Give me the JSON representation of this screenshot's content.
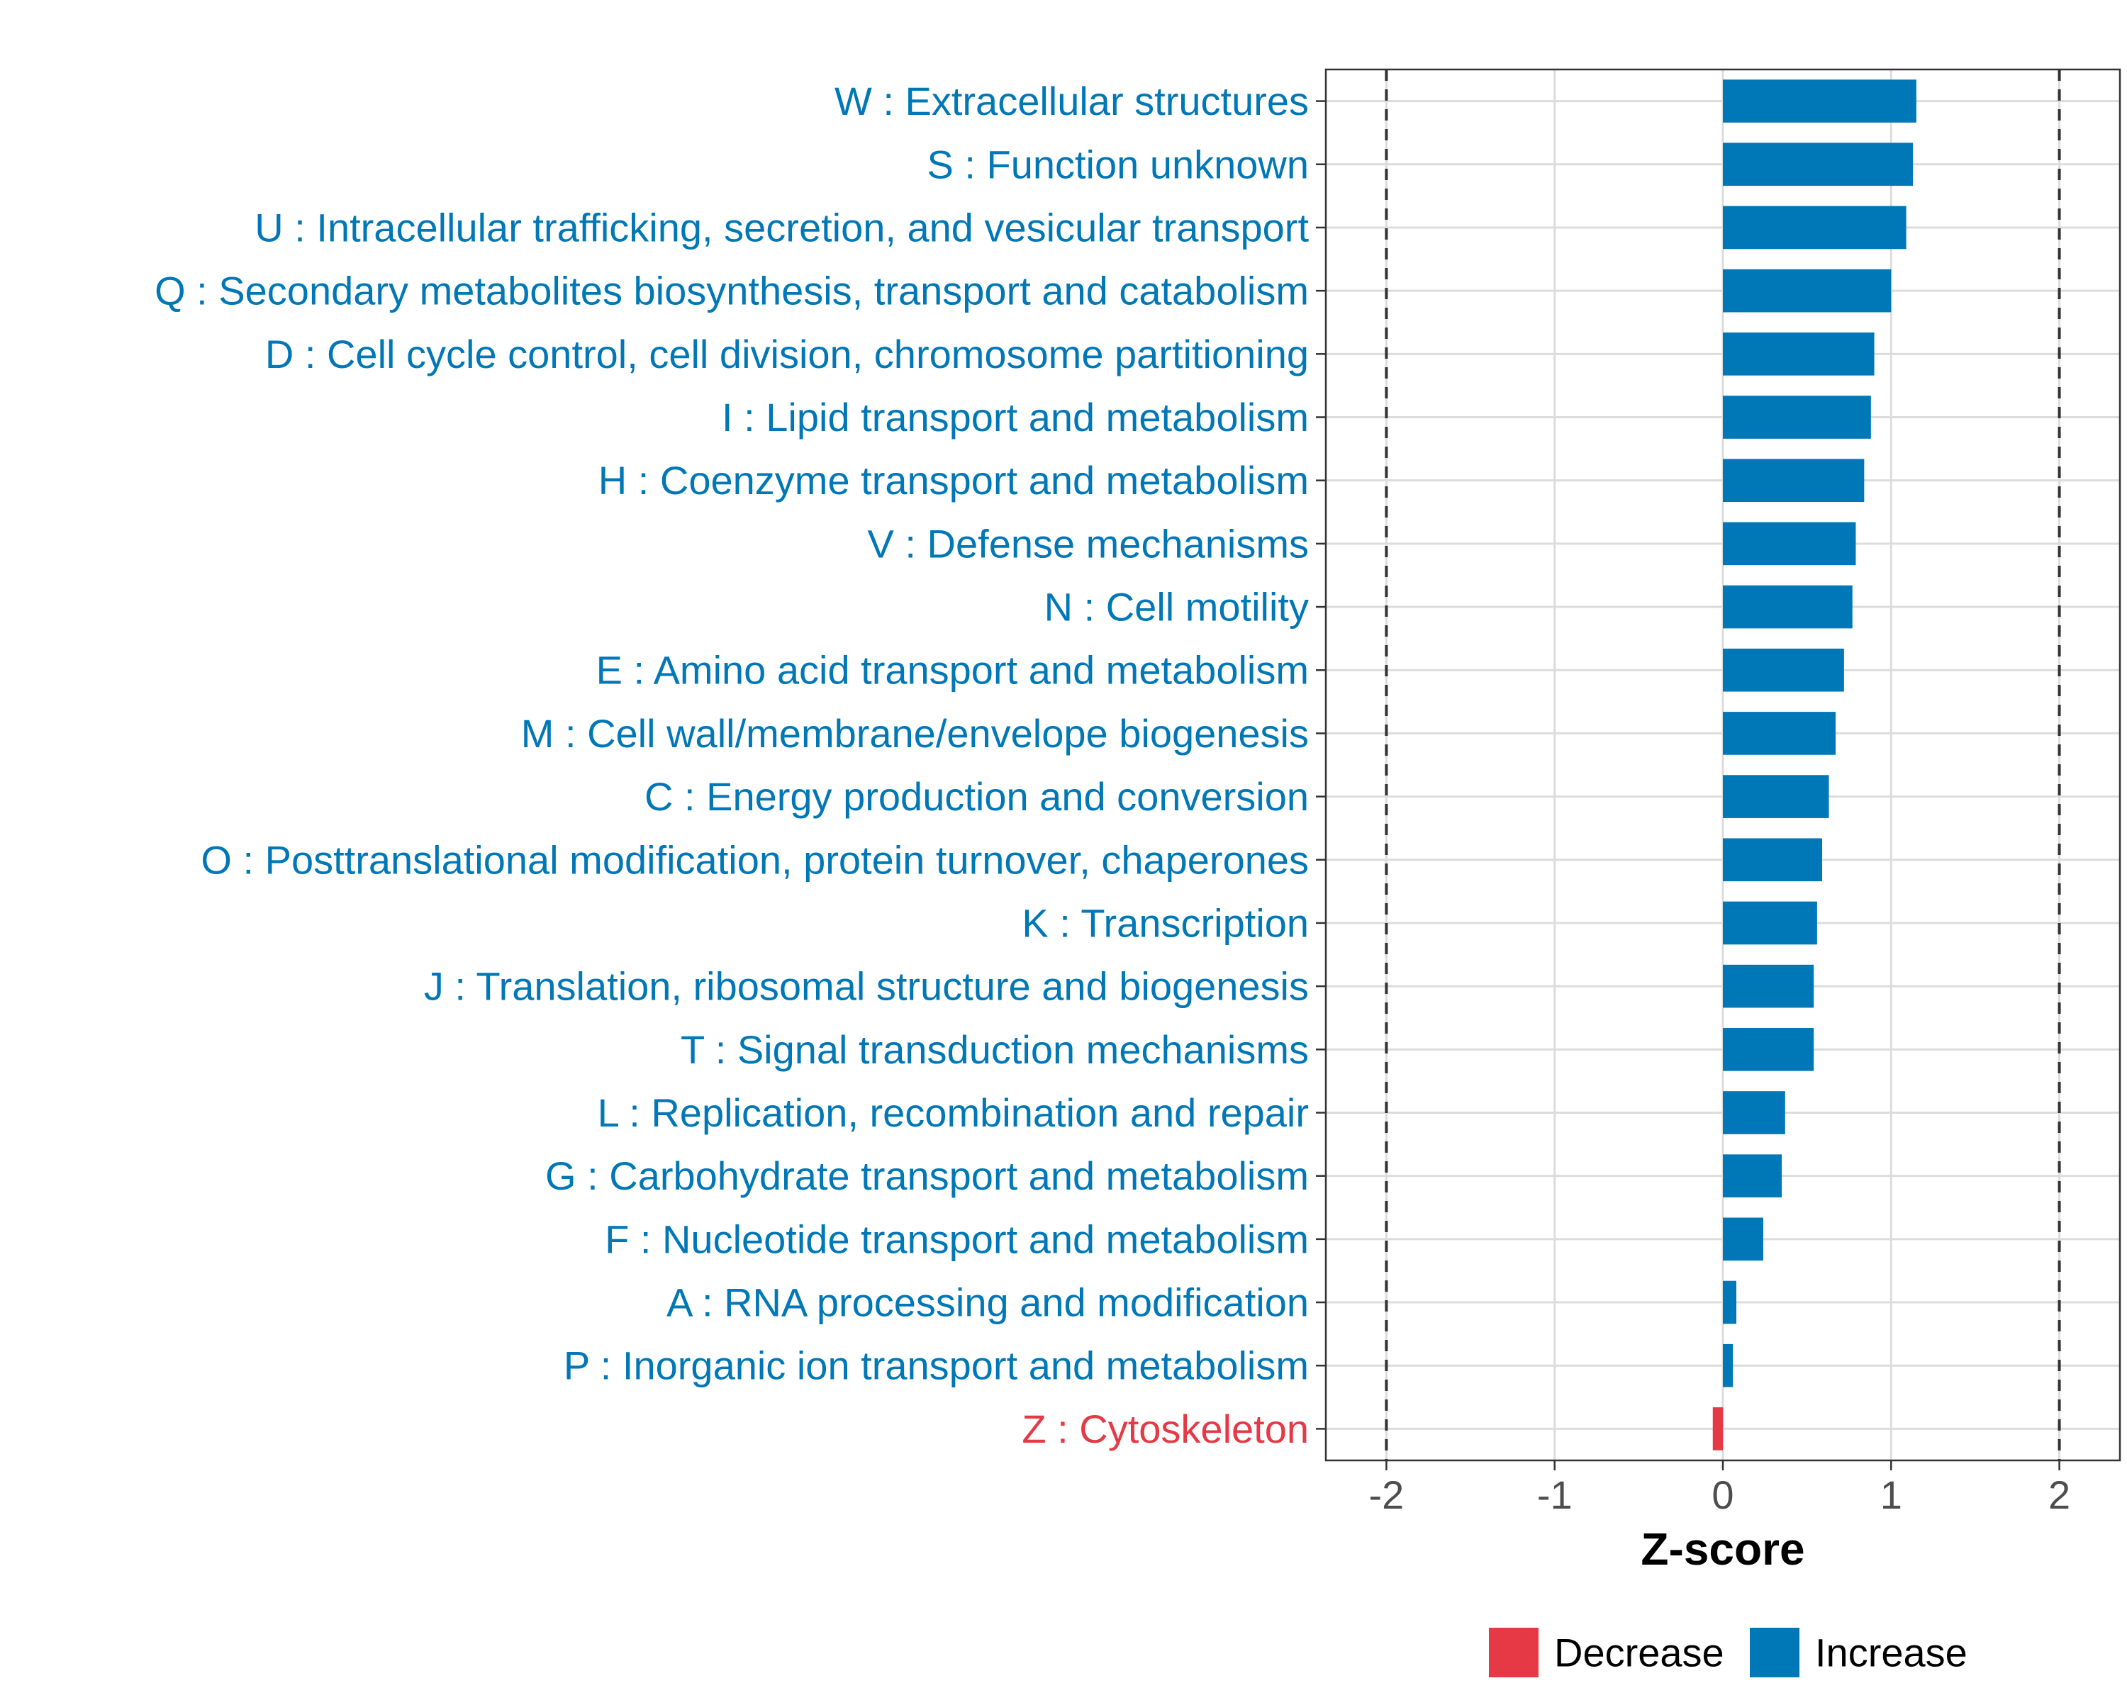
{
  "chart_data": {
    "type": "bar",
    "orientation": "horizontal",
    "title": "",
    "xlabel": "Z-score",
    "ylabel": "",
    "xlim": [
      -2.36,
      2.36
    ],
    "xticks": [
      -2,
      -1,
      0,
      1,
      2
    ],
    "xtick_labels": [
      "-2",
      "-1",
      "0",
      "1",
      "2"
    ],
    "reference_lines": [
      -2,
      2
    ],
    "grid": true,
    "legend_position": "bottom",
    "categories": [
      "W : Extracellular structures",
      "S : Function unknown",
      "U : Intracellular trafficking, secretion, and vesicular transport",
      "Q : Secondary metabolites biosynthesis, transport and catabolism",
      "D : Cell cycle control, cell division, chromosome partitioning",
      "I : Lipid transport and metabolism",
      "H : Coenzyme transport and metabolism",
      "V : Defense mechanisms",
      "N : Cell motility",
      "E : Amino acid transport and metabolism",
      "M : Cell wall/membrane/envelope biogenesis",
      "C : Energy production and conversion",
      "O : Posttranslational modification, protein turnover, chaperones",
      "K : Transcription",
      "J : Translation, ribosomal structure and biogenesis",
      "T : Signal transduction mechanisms",
      "L : Replication, recombination and repair",
      "G : Carbohydrate transport and metabolism",
      "F : Nucleotide transport and metabolism",
      "A : RNA processing and modification",
      "P : Inorganic ion transport and metabolism",
      "Z : Cytoskeleton"
    ],
    "values": [
      1.15,
      1.13,
      1.09,
      1.0,
      0.9,
      0.88,
      0.84,
      0.79,
      0.77,
      0.72,
      0.67,
      0.63,
      0.59,
      0.56,
      0.54,
      0.54,
      0.37,
      0.35,
      0.24,
      0.08,
      0.06,
      -0.06
    ],
    "groups": [
      "Increase",
      "Increase",
      "Increase",
      "Increase",
      "Increase",
      "Increase",
      "Increase",
      "Increase",
      "Increase",
      "Increase",
      "Increase",
      "Increase",
      "Increase",
      "Increase",
      "Increase",
      "Increase",
      "Increase",
      "Increase",
      "Increase",
      "Increase",
      "Increase",
      "Decrease"
    ],
    "legend": [
      {
        "label": "Decrease",
        "color": "#E63946"
      },
      {
        "label": "Increase",
        "color": "#0077B6"
      }
    ],
    "colors": {
      "increase": "#0077B6",
      "decrease": "#E63946",
      "grid": "#DCDCDC",
      "axis_text": "#4D4D4D",
      "border": "#333333"
    }
  }
}
